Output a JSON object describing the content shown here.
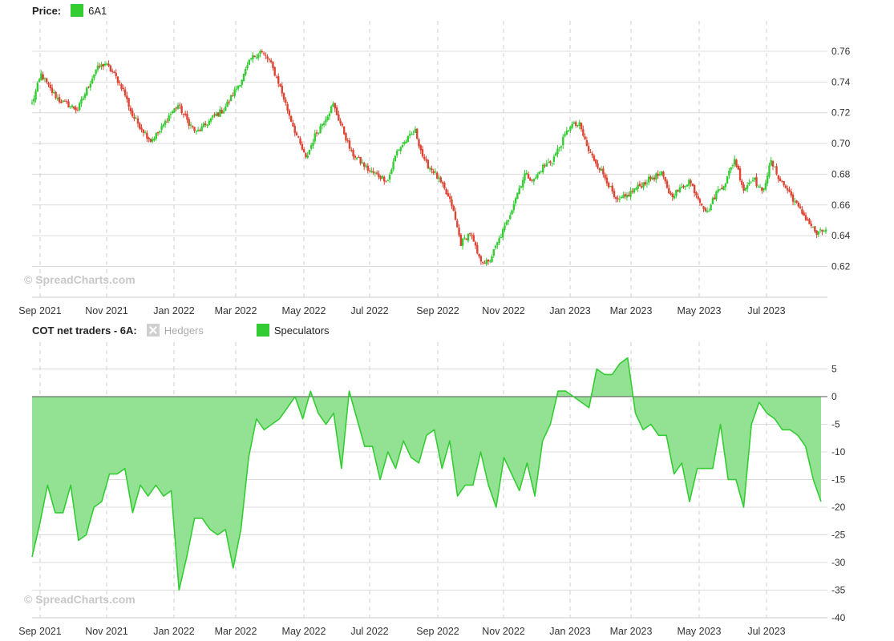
{
  "watermark": "© SpreadCharts.com",
  "chart_data": [
    {
      "type": "candlestick",
      "legend_title": "Price:",
      "series": [
        {
          "name": "6A1",
          "color": "#33cc33"
        }
      ],
      "colors": {
        "up": "#33cc33",
        "down": "#dd4433"
      },
      "x_ticks": [
        "Sep 2021",
        "Nov 2021",
        "Jan 2022",
        "Mar 2022",
        "May 2022",
        "Jul 2022",
        "Sep 2022",
        "Nov 2022",
        "Jan 2023",
        "Mar 2023",
        "May 2023",
        "Jul 2023"
      ],
      "y_ticks": [
        "0.62",
        "0.64",
        "0.66",
        "0.68",
        "0.70",
        "0.72",
        "0.74",
        "0.76"
      ],
      "ylim": [
        0.609,
        0.771
      ],
      "y_axis_side": "right",
      "grid": true,
      "weekly_close": [
        0.726,
        0.745,
        0.735,
        0.728,
        0.725,
        0.722,
        0.735,
        0.748,
        0.752,
        0.745,
        0.735,
        0.718,
        0.71,
        0.702,
        0.708,
        0.718,
        0.725,
        0.715,
        0.707,
        0.712,
        0.718,
        0.722,
        0.732,
        0.742,
        0.755,
        0.76,
        0.754,
        0.74,
        0.722,
        0.705,
        0.69,
        0.705,
        0.715,
        0.725,
        0.71,
        0.694,
        0.688,
        0.682,
        0.679,
        0.676,
        0.695,
        0.702,
        0.708,
        0.688,
        0.682,
        0.672,
        0.66,
        0.635,
        0.642,
        0.625,
        0.622,
        0.635,
        0.648,
        0.665,
        0.68,
        0.676,
        0.685,
        0.689,
        0.7,
        0.712,
        0.712,
        0.695,
        0.686,
        0.676,
        0.662,
        0.665,
        0.67,
        0.674,
        0.678,
        0.68,
        0.666,
        0.67,
        0.676,
        0.665,
        0.655,
        0.668,
        0.675,
        0.69,
        0.67,
        0.678,
        0.668,
        0.688,
        0.676,
        0.668,
        0.658,
        0.65,
        0.641,
        0.644
      ]
    },
    {
      "type": "area",
      "legend_title": "COT net traders - 6A:",
      "series": [
        {
          "name": "Hedgers",
          "visible": false
        },
        {
          "name": "Speculators",
          "color": "#33cc33",
          "fill": "#93e293",
          "visible": true,
          "values": [
            -29,
            -23,
            -16,
            -21,
            -21,
            -16,
            -26,
            -25,
            -20,
            -19,
            -14,
            -14,
            -13,
            -21,
            -16,
            -18,
            -16,
            -18,
            -17,
            -35,
            -29,
            -22,
            -22,
            -24,
            -25,
            -24,
            -31,
            -24,
            -11,
            -4,
            -6,
            -5,
            -4,
            -2,
            0,
            -4,
            1,
            -3,
            -5,
            -3,
            -13,
            1,
            -4,
            -9,
            -9,
            -15,
            -10,
            -13,
            -8,
            -11,
            -12,
            -7,
            -6,
            -13,
            -8,
            -18,
            -16,
            -16,
            -10,
            -16,
            -20,
            -11,
            -14,
            -17,
            -12,
            -18,
            -8,
            -5,
            1,
            1,
            0,
            -1,
            -2,
            5,
            4,
            4,
            6,
            7,
            -3,
            -6,
            -5,
            -7,
            -7,
            -14,
            -12,
            -19,
            -13,
            -13,
            -13,
            -5,
            -15,
            -15,
            -20,
            -5,
            -1,
            -3,
            -4,
            -6,
            -6,
            -7,
            -9,
            -15,
            -19
          ]
        }
      ],
      "x_ticks": [
        "Sep 2021",
        "Nov 2021",
        "Jan 2022",
        "Mar 2022",
        "May 2022",
        "Jul 2022",
        "Sep 2022",
        "Nov 2022",
        "Jan 2023",
        "Mar 2023",
        "May 2023",
        "Jul 2023"
      ],
      "y_ticks": [
        "5",
        "0",
        "-5",
        "-10",
        "-15",
        "-20",
        "-25",
        "-30",
        "-35",
        "-40"
      ],
      "ylim": [
        -40,
        9
      ],
      "y_axis_side": "right",
      "grid": true
    }
  ]
}
